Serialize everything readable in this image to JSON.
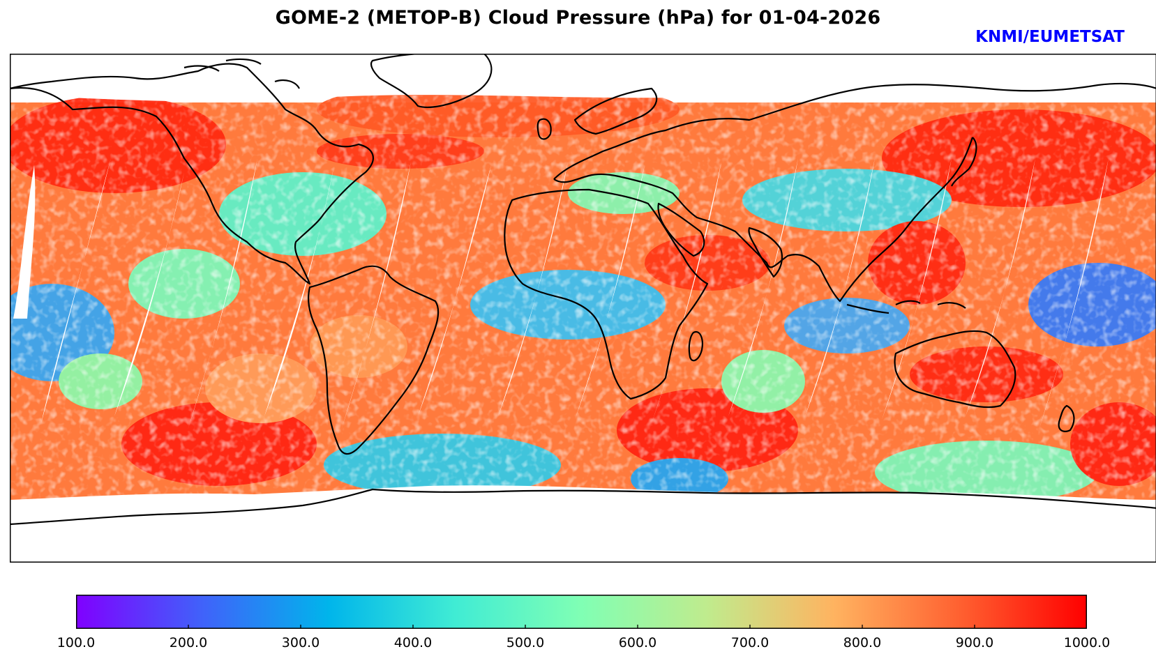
{
  "title": "GOME-2 (METOP-B) Cloud Pressure (hPa) for 01-04-2026",
  "credit": "KNMI/EUMETSAT",
  "colors": {
    "credit": "#0000ff",
    "frame": "#000000",
    "coast": "#000000",
    "swath_gap": "#ffffff"
  },
  "colorbar": {
    "min": 100.0,
    "max": 1000.0,
    "ticks": [
      "100.0",
      "200.0",
      "300.0",
      "400.0",
      "500.0",
      "600.0",
      "700.0",
      "800.0",
      "900.0",
      "1000.0"
    ],
    "colormap": "rainbow",
    "stops": [
      "#8000ff",
      "#4062fa",
      "#00b5eb",
      "#40ecd4",
      "#80ffb4",
      "#c0eb8d",
      "#ffb360",
      "#ff6030",
      "#ff0000"
    ]
  },
  "map": {
    "projection": "plate carree",
    "swath_gaps_count": 14
  }
}
